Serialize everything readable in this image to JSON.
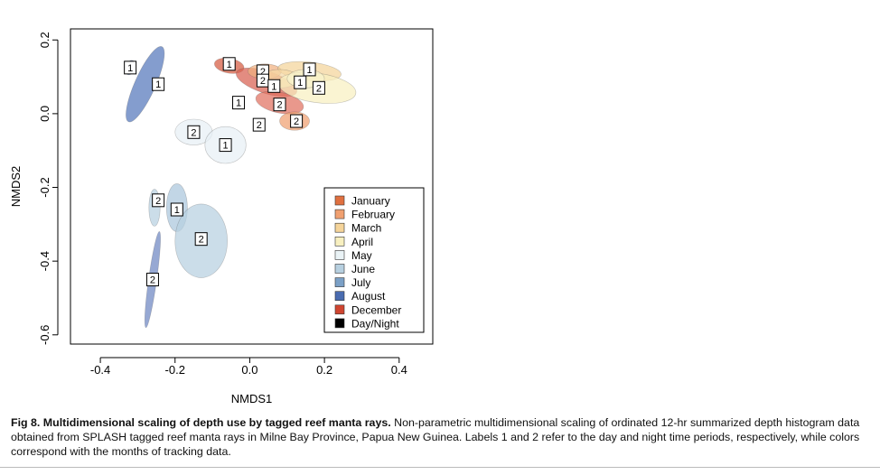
{
  "chart_data": {
    "type": "scatter",
    "title": "",
    "xlabel": "NMDS1",
    "ylabel": "NMDS2",
    "xlim": [
      -0.48,
      0.49
    ],
    "ylim": [
      -0.625,
      0.23
    ],
    "xticks": [
      -0.4,
      -0.2,
      0.0,
      0.2,
      0.4
    ],
    "yticks": [
      0.2,
      0.0,
      -0.2,
      -0.4,
      -0.6
    ],
    "xtick_labels": [
      "-0.4",
      "-0.2",
      "0.0",
      "0.2",
      "0.4"
    ],
    "ytick_labels": [
      "0.2",
      "0.0",
      "-0.2",
      "-0.4",
      "-0.6"
    ],
    "legend_position": "bottom-right",
    "legend": [
      {
        "label": "January",
        "color": "#e07040"
      },
      {
        "label": "February",
        "color": "#f0a070"
      },
      {
        "label": "March",
        "color": "#f5d49a"
      },
      {
        "label": "April",
        "color": "#f8f0c0"
      },
      {
        "label": "May",
        "color": "#eaf3f6"
      },
      {
        "label": "June",
        "color": "#b7d0e0"
      },
      {
        "label": "July",
        "color": "#7ba0c6"
      },
      {
        "label": "August",
        "color": "#4a6cb0"
      },
      {
        "label": "December",
        "color": "#d04530"
      },
      {
        "label": "Day/Night",
        "color": "#000000"
      }
    ],
    "ellipses": [
      {
        "month": "August",
        "x": -0.28,
        "y": 0.08,
        "rx": 0.11,
        "ry": 0.028,
        "angle": 66,
        "color": "#5577bb"
      },
      {
        "month": "August",
        "x": -0.32,
        "y": 0.125,
        "rx": 0.02,
        "ry": 0.013,
        "angle": 70,
        "color": "#6a86c0"
      },
      {
        "month": "May",
        "x": -0.15,
        "y": -0.05,
        "rx": 0.05,
        "ry": 0.035,
        "angle": 0,
        "color": "#e8f0f5"
      },
      {
        "month": "May",
        "x": -0.065,
        "y": -0.085,
        "rx": 0.055,
        "ry": 0.05,
        "angle": 0,
        "color": "#e8f0f5"
      },
      {
        "month": "December",
        "x": -0.055,
        "y": 0.13,
        "rx": 0.04,
        "ry": 0.02,
        "angle": -10,
        "color": "#d55a40"
      },
      {
        "month": "December",
        "x": 0.045,
        "y": 0.085,
        "rx": 0.085,
        "ry": 0.03,
        "angle": -18,
        "color": "#d86050"
      },
      {
        "month": "January",
        "x": 0.08,
        "y": 0.03,
        "rx": 0.065,
        "ry": 0.028,
        "angle": -12,
        "color": "#e07060"
      },
      {
        "month": "February",
        "x": 0.12,
        "y": -0.02,
        "rx": 0.04,
        "ry": 0.025,
        "angle": 0,
        "color": "#f0a070"
      },
      {
        "month": "February",
        "x": 0.04,
        "y": 0.115,
        "rx": 0.045,
        "ry": 0.02,
        "angle": 0,
        "color": "#f0b080"
      },
      {
        "month": "March",
        "x": 0.16,
        "y": 0.115,
        "rx": 0.085,
        "ry": 0.025,
        "angle": -6,
        "color": "#f4d49a"
      },
      {
        "month": "March",
        "x": 0.08,
        "y": 0.095,
        "rx": 0.05,
        "ry": 0.025,
        "angle": 0,
        "color": "#f5d8a5"
      },
      {
        "month": "April",
        "x": 0.18,
        "y": 0.07,
        "rx": 0.105,
        "ry": 0.04,
        "angle": -8,
        "color": "#f8f0c0"
      },
      {
        "month": "April",
        "x": 0.15,
        "y": 0.095,
        "rx": 0.05,
        "ry": 0.025,
        "angle": 0,
        "color": "#f8f2cc"
      },
      {
        "month": "April",
        "x": -0.03,
        "y": 0.03,
        "rx": 0.012,
        "ry": 0.018,
        "angle": 0,
        "color": "#f8f0c0"
      },
      {
        "month": "April",
        "x": 0.025,
        "y": -0.03,
        "rx": 0.012,
        "ry": 0.015,
        "angle": 0,
        "color": "#f8f0c0"
      },
      {
        "month": "June",
        "x": -0.255,
        "y": -0.255,
        "rx": 0.015,
        "ry": 0.05,
        "angle": 0,
        "color": "#b7d0e0"
      },
      {
        "month": "June",
        "x": -0.195,
        "y": -0.255,
        "rx": 0.028,
        "ry": 0.065,
        "angle": 0,
        "color": "#aac6dd"
      },
      {
        "month": "June",
        "x": -0.13,
        "y": -0.345,
        "rx": 0.07,
        "ry": 0.1,
        "angle": 0,
        "color": "#b7d0e0"
      },
      {
        "month": "July",
        "x": -0.26,
        "y": -0.45,
        "rx": 0.13,
        "ry": 0.011,
        "angle": 82,
        "color": "#6d86c2"
      }
    ],
    "points": [
      {
        "label": "1",
        "x": -0.32,
        "y": 0.125
      },
      {
        "label": "1",
        "x": -0.245,
        "y": 0.08
      },
      {
        "label": "1",
        "x": -0.055,
        "y": 0.135
      },
      {
        "label": "2",
        "x": 0.035,
        "y": 0.115
      },
      {
        "label": "1",
        "x": 0.16,
        "y": 0.12
      },
      {
        "label": "2",
        "x": 0.035,
        "y": 0.09
      },
      {
        "label": "1",
        "x": 0.065,
        "y": 0.075
      },
      {
        "label": "1",
        "x": 0.135,
        "y": 0.085
      },
      {
        "label": "2",
        "x": 0.185,
        "y": 0.07
      },
      {
        "label": "1",
        "x": -0.03,
        "y": 0.03
      },
      {
        "label": "2",
        "x": 0.08,
        "y": 0.025
      },
      {
        "label": "2",
        "x": 0.025,
        "y": -0.03
      },
      {
        "label": "2",
        "x": 0.125,
        "y": -0.02
      },
      {
        "label": "2",
        "x": -0.15,
        "y": -0.05
      },
      {
        "label": "1",
        "x": -0.065,
        "y": -0.085
      },
      {
        "label": "2",
        "x": -0.245,
        "y": -0.235
      },
      {
        "label": "1",
        "x": -0.195,
        "y": -0.26
      },
      {
        "label": "2",
        "x": -0.13,
        "y": -0.34
      },
      {
        "label": "2",
        "x": -0.26,
        "y": -0.45
      }
    ]
  },
  "caption": {
    "bold": "Fig 8.  Multidimensional scaling of depth use by tagged reef manta rays.",
    "text": " Non-parametric multidimensional scaling of ordinated 12-hr summarized depth histogram data obtained from SPLASH tagged reef manta rays in Milne Bay Province, Papua New Guinea. Labels 1 and 2 refer to the day and night time periods, respectively, while colors correspond with the months of tracking data."
  }
}
